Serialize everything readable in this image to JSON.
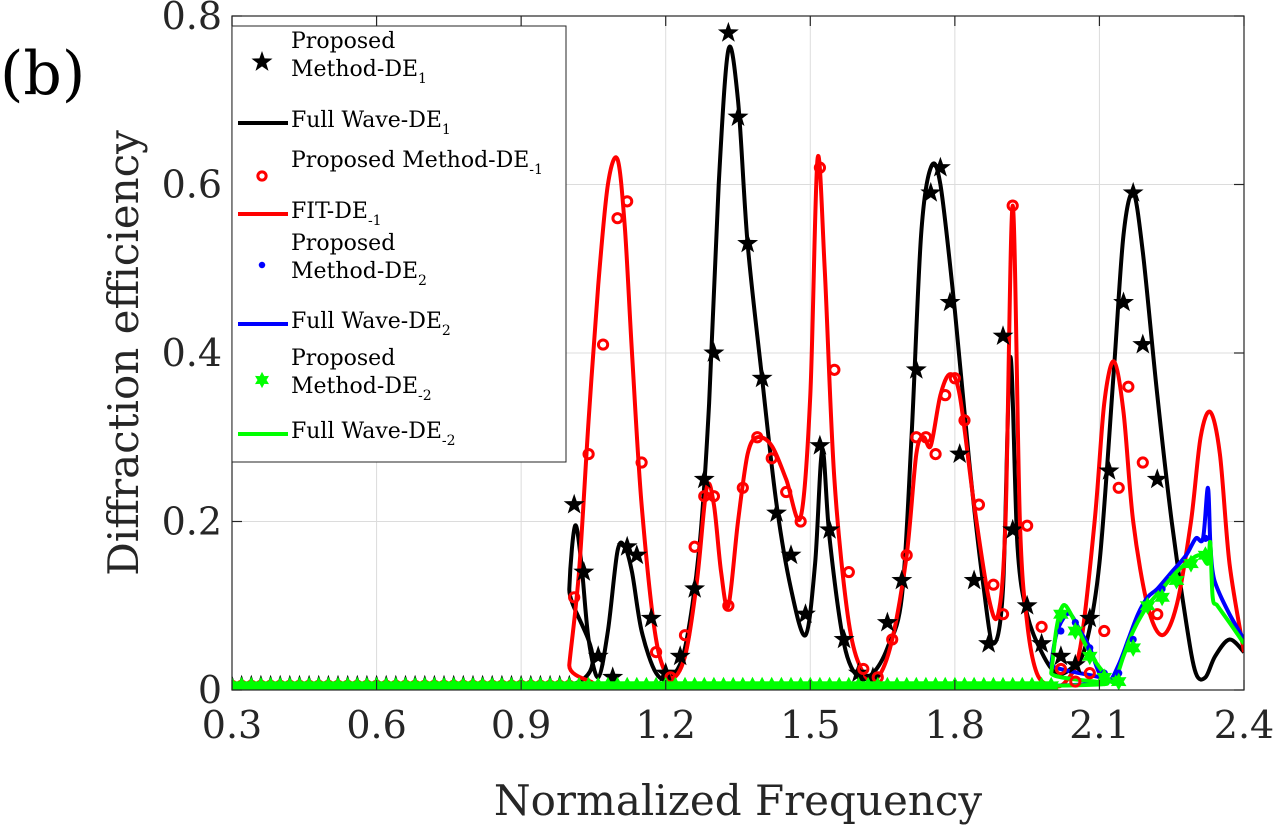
{
  "panel_label": "(b)",
  "chart_data": {
    "type": "line",
    "xlabel": "Normalized Frequency",
    "ylabel": "Diffraction efficiency",
    "xlim": [
      0.3,
      2.4
    ],
    "ylim": [
      0,
      0.8
    ],
    "xticks": [
      0.3,
      0.6,
      0.9,
      1.2,
      1.5,
      1.8,
      2.1,
      2.4
    ],
    "xtick_labels": [
      "0.3",
      "0.6",
      "0.9",
      "1.2",
      "1.5",
      "1.8",
      "2.1",
      "2.4"
    ],
    "yticks": [
      0,
      0.2,
      0.4,
      0.6,
      0.8
    ],
    "ytick_labels": [
      "0",
      "0.2",
      "0.4",
      "0.6",
      "0.8"
    ],
    "grid": true,
    "legend_position": "top-left",
    "series": [
      {
        "name_main": "Proposed",
        "name_line2": "Method-DE",
        "name_sub": "1",
        "style": "marker",
        "marker": "star",
        "color": "#000000",
        "x": [
          0.3,
          0.32,
          0.34,
          0.36,
          0.38,
          0.4,
          0.42,
          0.44,
          0.46,
          0.48,
          0.5,
          0.52,
          0.54,
          0.56,
          0.58,
          0.6,
          0.62,
          0.64,
          0.66,
          0.68,
          0.7,
          0.72,
          0.74,
          0.76,
          0.78,
          0.8,
          0.82,
          0.84,
          0.86,
          0.88,
          0.9,
          0.92,
          0.94,
          0.96,
          0.98,
          1.0,
          1.01,
          1.03,
          1.06,
          1.09,
          1.12,
          1.14,
          1.17,
          1.2,
          1.23,
          1.26,
          1.28,
          1.3,
          1.33,
          1.35,
          1.37,
          1.4,
          1.43,
          1.46,
          1.49,
          1.52,
          1.54,
          1.57,
          1.6,
          1.63,
          1.66,
          1.69,
          1.72,
          1.75,
          1.77,
          1.79,
          1.81,
          1.84,
          1.87,
          1.9,
          1.92,
          1.95,
          1.98,
          2.02,
          2.05,
          2.08,
          2.12,
          2.15,
          2.17,
          2.19,
          2.22
        ],
        "y": [
          0.005,
          0.005,
          0.005,
          0.005,
          0.005,
          0.005,
          0.005,
          0.005,
          0.005,
          0.005,
          0.005,
          0.005,
          0.005,
          0.005,
          0.005,
          0.005,
          0.005,
          0.005,
          0.005,
          0.005,
          0.005,
          0.005,
          0.005,
          0.005,
          0.005,
          0.005,
          0.005,
          0.005,
          0.005,
          0.005,
          0.005,
          0.005,
          0.005,
          0.005,
          0.005,
          0.005,
          0.22,
          0.14,
          0.04,
          0.015,
          0.17,
          0.16,
          0.085,
          0.02,
          0.04,
          0.12,
          0.25,
          0.4,
          0.78,
          0.68,
          0.53,
          0.37,
          0.21,
          0.16,
          0.09,
          0.29,
          0.19,
          0.06,
          0.02,
          0.015,
          0.08,
          0.13,
          0.38,
          0.59,
          0.62,
          0.46,
          0.28,
          0.13,
          0.055,
          0.42,
          0.19,
          0.1,
          0.055,
          0.04,
          0.03,
          0.085,
          0.26,
          0.46,
          0.59,
          0.41,
          0.25
        ]
      },
      {
        "name_main": "Full Wave-DE",
        "name_sub": "1",
        "style": "line",
        "color": "#000000",
        "x": [
          0.3,
          0.999,
          1.0,
          1.012,
          1.025,
          1.04,
          1.06,
          1.08,
          1.1,
          1.115,
          1.13,
          1.15,
          1.18,
          1.21,
          1.24,
          1.27,
          1.29,
          1.31,
          1.33,
          1.35,
          1.37,
          1.4,
          1.43,
          1.46,
          1.49,
          1.51,
          1.525,
          1.54,
          1.57,
          1.6,
          1.63,
          1.66,
          1.69,
          1.71,
          1.73,
          1.75,
          1.77,
          1.8,
          1.83,
          1.86,
          1.88,
          1.9,
          1.915,
          1.93,
          1.95,
          1.98,
          2.01,
          2.04,
          2.07,
          2.1,
          2.13,
          2.15,
          2.17,
          2.19,
          2.22,
          2.25,
          2.28,
          2.3,
          2.32,
          2.34,
          2.37,
          2.4
        ],
        "y": [
          0.005,
          0.005,
          0.12,
          0.195,
          0.15,
          0.06,
          0.015,
          0.07,
          0.165,
          0.17,
          0.14,
          0.07,
          0.02,
          0.015,
          0.05,
          0.17,
          0.34,
          0.6,
          0.76,
          0.7,
          0.53,
          0.37,
          0.22,
          0.12,
          0.065,
          0.15,
          0.285,
          0.18,
          0.055,
          0.015,
          0.02,
          0.05,
          0.11,
          0.3,
          0.54,
          0.62,
          0.6,
          0.45,
          0.27,
          0.12,
          0.055,
          0.12,
          0.395,
          0.17,
          0.09,
          0.045,
          0.02,
          0.025,
          0.05,
          0.15,
          0.38,
          0.54,
          0.59,
          0.52,
          0.35,
          0.2,
          0.08,
          0.02,
          0.015,
          0.04,
          0.06,
          0.045
        ]
      },
      {
        "name_main": "Proposed Method-DE",
        "name_sub": "-1",
        "style": "marker",
        "marker": "circle",
        "color": "#ff0000",
        "x": [
          0.3,
          0.32,
          0.34,
          0.36,
          0.38,
          0.4,
          0.42,
          0.44,
          0.46,
          0.48,
          0.5,
          0.52,
          0.54,
          0.56,
          0.58,
          0.6,
          0.62,
          0.64,
          0.66,
          0.68,
          0.7,
          0.72,
          0.74,
          0.76,
          0.78,
          0.8,
          0.82,
          0.84,
          0.86,
          0.88,
          0.9,
          0.92,
          0.94,
          0.96,
          0.98,
          1.0,
          1.01,
          1.04,
          1.07,
          1.1,
          1.12,
          1.15,
          1.18,
          1.21,
          1.24,
          1.26,
          1.28,
          1.3,
          1.33,
          1.36,
          1.39,
          1.42,
          1.45,
          1.48,
          1.52,
          1.55,
          1.58,
          1.61,
          1.64,
          1.67,
          1.7,
          1.72,
          1.74,
          1.76,
          1.78,
          1.8,
          1.82,
          1.85,
          1.88,
          1.9,
          1.92,
          1.95,
          1.98,
          2.02,
          2.05,
          2.08,
          2.11,
          2.14,
          2.16,
          2.19,
          2.22
        ],
        "y": [
          0.005,
          0.005,
          0.005,
          0.005,
          0.005,
          0.005,
          0.005,
          0.005,
          0.005,
          0.005,
          0.005,
          0.005,
          0.005,
          0.005,
          0.005,
          0.005,
          0.005,
          0.005,
          0.005,
          0.005,
          0.005,
          0.005,
          0.005,
          0.005,
          0.005,
          0.005,
          0.005,
          0.005,
          0.005,
          0.005,
          0.005,
          0.005,
          0.005,
          0.005,
          0.005,
          0.005,
          0.11,
          0.28,
          0.41,
          0.56,
          0.58,
          0.27,
          0.045,
          0.015,
          0.065,
          0.17,
          0.23,
          0.23,
          0.1,
          0.24,
          0.3,
          0.275,
          0.235,
          0.2,
          0.62,
          0.38,
          0.14,
          0.025,
          0.015,
          0.06,
          0.16,
          0.3,
          0.3,
          0.28,
          0.35,
          0.37,
          0.32,
          0.22,
          0.125,
          0.09,
          0.575,
          0.195,
          0.075,
          0.025,
          0.01,
          0.02,
          0.07,
          0.24,
          0.36,
          0.27,
          0.09
        ]
      },
      {
        "name_main": "FIT-DE",
        "name_sub": "-1",
        "style": "line",
        "color": "#ff0000",
        "x": [
          0.3,
          0.999,
          1.0,
          1.02,
          1.04,
          1.06,
          1.08,
          1.1,
          1.115,
          1.13,
          1.15,
          1.18,
          1.21,
          1.24,
          1.265,
          1.285,
          1.3,
          1.315,
          1.33,
          1.35,
          1.37,
          1.39,
          1.42,
          1.45,
          1.48,
          1.5,
          1.515,
          1.53,
          1.55,
          1.58,
          1.61,
          1.64,
          1.67,
          1.7,
          1.72,
          1.735,
          1.75,
          1.77,
          1.79,
          1.81,
          1.84,
          1.87,
          1.89,
          1.905,
          1.92,
          1.935,
          1.95,
          1.97,
          2.0,
          2.03,
          2.06,
          2.09,
          2.11,
          2.13,
          2.15,
          2.17,
          2.2,
          2.23,
          2.26,
          2.29,
          2.31,
          2.33,
          2.35,
          2.37,
          2.4
        ],
        "y": [
          0.005,
          0.005,
          0.03,
          0.14,
          0.32,
          0.48,
          0.6,
          0.63,
          0.55,
          0.4,
          0.22,
          0.06,
          0.015,
          0.04,
          0.13,
          0.24,
          0.22,
          0.14,
          0.1,
          0.2,
          0.28,
          0.3,
          0.29,
          0.25,
          0.205,
          0.35,
          0.63,
          0.5,
          0.25,
          0.08,
          0.02,
          0.015,
          0.06,
          0.16,
          0.28,
          0.3,
          0.29,
          0.35,
          0.375,
          0.35,
          0.22,
          0.11,
          0.09,
          0.2,
          0.575,
          0.2,
          0.08,
          0.02,
          0.005,
          0.01,
          0.05,
          0.2,
          0.34,
          0.39,
          0.33,
          0.2,
          0.1,
          0.065,
          0.1,
          0.2,
          0.3,
          0.33,
          0.28,
          0.15,
          0.045
        ]
      },
      {
        "name_main": "Proposed",
        "name_line2": "Method-DE",
        "name_sub": "2",
        "style": "marker",
        "marker": "dot",
        "color": "#0000ff",
        "x": [
          2.02,
          2.05,
          2.08,
          2.11,
          2.14,
          2.17,
          2.2,
          2.23,
          2.26,
          2.29,
          2.32
        ],
        "y": [
          0.07,
          0.08,
          0.05,
          0.02,
          0.02,
          0.06,
          0.1,
          0.12,
          0.13,
          0.15,
          0.18
        ]
      },
      {
        "name_main": "Full Wave-DE",
        "name_sub": "2",
        "style": "line",
        "color": "#0000ff",
        "x": [
          0.3,
          1.995,
          2.0,
          2.01,
          2.025,
          2.04,
          2.06,
          2.08,
          2.1,
          2.12,
          2.14,
          2.16,
          2.18,
          2.2,
          2.22,
          2.25,
          2.28,
          2.3,
          2.315,
          2.325,
          2.33,
          2.335,
          2.345,
          2.37,
          2.4
        ],
        "y": [
          0.005,
          0.005,
          0.03,
          0.065,
          0.085,
          0.09,
          0.07,
          0.05,
          0.02,
          0.01,
          0.03,
          0.06,
          0.09,
          0.11,
          0.12,
          0.14,
          0.16,
          0.18,
          0.18,
          0.24,
          0.175,
          0.14,
          0.12,
          0.09,
          0.06
        ]
      },
      {
        "name_main": "Proposed",
        "name_line2": "Method-DE",
        "name_sub": "-2",
        "style": "marker",
        "marker": "hexagram",
        "color": "#00ff00",
        "x": [
          0.3,
          0.32,
          0.34,
          0.36,
          0.38,
          0.4,
          0.42,
          0.44,
          0.46,
          0.48,
          0.5,
          0.52,
          0.54,
          0.56,
          0.58,
          0.6,
          0.62,
          0.64,
          0.66,
          0.68,
          0.7,
          0.72,
          0.74,
          0.76,
          0.78,
          0.8,
          0.82,
          0.84,
          0.86,
          0.88,
          0.9,
          0.92,
          0.94,
          0.96,
          0.98,
          1.0,
          1.02,
          1.04,
          1.06,
          1.08,
          1.1,
          1.12,
          1.14,
          1.16,
          1.18,
          1.2,
          1.22,
          1.24,
          1.26,
          1.28,
          1.3,
          1.32,
          1.34,
          1.36,
          1.38,
          1.4,
          1.42,
          1.44,
          1.46,
          1.48,
          1.5,
          1.52,
          1.54,
          1.56,
          1.58,
          1.6,
          1.62,
          1.64,
          1.66,
          1.68,
          1.7,
          1.72,
          1.74,
          1.76,
          1.78,
          1.8,
          1.82,
          1.84,
          1.86,
          1.88,
          1.9,
          1.92,
          1.94,
          1.96,
          1.98,
          2.0,
          2.02,
          2.05,
          2.08,
          2.11,
          2.14,
          2.17,
          2.2,
          2.23,
          2.26,
          2.29,
          2.32
        ],
        "y": [
          0.005,
          0.005,
          0.005,
          0.005,
          0.005,
          0.005,
          0.005,
          0.005,
          0.005,
          0.005,
          0.005,
          0.005,
          0.005,
          0.005,
          0.005,
          0.005,
          0.005,
          0.005,
          0.005,
          0.005,
          0.005,
          0.005,
          0.005,
          0.005,
          0.005,
          0.005,
          0.005,
          0.005,
          0.005,
          0.005,
          0.005,
          0.005,
          0.005,
          0.005,
          0.005,
          0.005,
          0.005,
          0.005,
          0.005,
          0.005,
          0.005,
          0.005,
          0.005,
          0.005,
          0.005,
          0.005,
          0.005,
          0.005,
          0.005,
          0.005,
          0.005,
          0.005,
          0.005,
          0.005,
          0.005,
          0.005,
          0.005,
          0.005,
          0.005,
          0.005,
          0.005,
          0.005,
          0.005,
          0.005,
          0.005,
          0.005,
          0.005,
          0.005,
          0.005,
          0.005,
          0.005,
          0.005,
          0.005,
          0.005,
          0.005,
          0.005,
          0.005,
          0.005,
          0.005,
          0.005,
          0.005,
          0.005,
          0.005,
          0.005,
          0.005,
          0.005,
          0.09,
          0.07,
          0.04,
          0.015,
          0.01,
          0.05,
          0.1,
          0.11,
          0.13,
          0.15,
          0.16
        ]
      },
      {
        "name_main": "Full Wave-DE",
        "name_sub": "-2",
        "style": "line",
        "color": "#00ff00",
        "x": [
          0.3,
          1.995,
          2.0,
          2.01,
          2.02,
          2.03,
          2.05,
          2.07,
          2.09,
          2.11,
          2.13,
          2.15,
          2.17,
          2.2,
          2.23,
          2.26,
          2.29,
          2.31,
          2.325,
          2.33,
          2.335,
          2.345,
          2.37,
          2.4
        ],
        "y": [
          0.005,
          0.005,
          0.02,
          0.07,
          0.095,
          0.1,
          0.08,
          0.055,
          0.035,
          0.02,
          0.01,
          0.04,
          0.07,
          0.1,
          0.12,
          0.14,
          0.155,
          0.16,
          0.15,
          0.175,
          0.11,
          0.1,
          0.08,
          0.055
        ]
      }
    ]
  }
}
